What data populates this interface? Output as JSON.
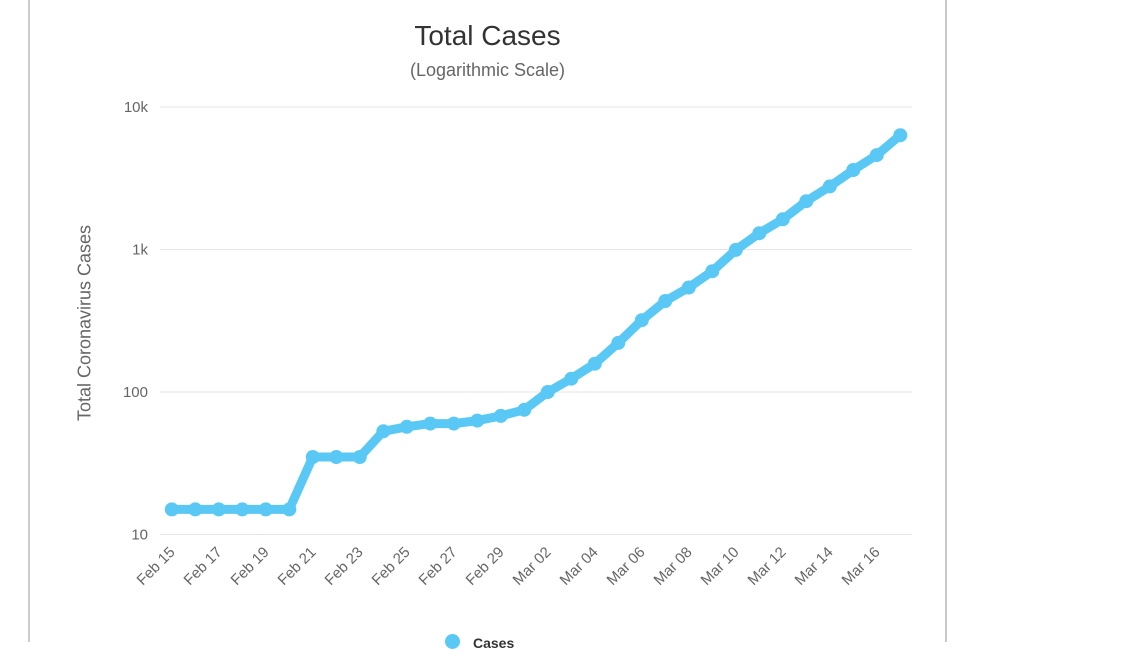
{
  "chart": {
    "title": "Total Cases",
    "subtitle": "(Logarithmic Scale)",
    "y_axis_title": "Total Coronavirus Cases",
    "line_color": "#5ac8f5",
    "grid_color": "#e6e6e6",
    "tick_label_color": "#666666",
    "title_color": "#333333",
    "card_border_color": "#cccccc",
    "legend": {
      "label": "Cases",
      "marker_color": "#5ac8f5"
    }
  },
  "chart_data": {
    "type": "line",
    "title": "Total Cases",
    "subtitle": "(Logarithmic Scale)",
    "xlabel": "",
    "ylabel": "Total Coronavirus Cases",
    "yscale": "log",
    "ylim": [
      10,
      10000
    ],
    "grid": true,
    "legend_position": "bottom",
    "x": [
      "Feb 15",
      "Feb 16",
      "Feb 17",
      "Feb 18",
      "Feb 19",
      "Feb 20",
      "Feb 21",
      "Feb 22",
      "Feb 23",
      "Feb 24",
      "Feb 25",
      "Feb 26",
      "Feb 27",
      "Feb 28",
      "Feb 29",
      "Mar 01",
      "Mar 02",
      "Mar 03",
      "Mar 04",
      "Mar 05",
      "Mar 06",
      "Mar 07",
      "Mar 08",
      "Mar 09",
      "Mar 10",
      "Mar 11",
      "Mar 12",
      "Mar 13",
      "Mar 14",
      "Mar 15",
      "Mar 16",
      "Mar 17"
    ],
    "xtick_labels": [
      "Feb 15",
      "Feb 17",
      "Feb 19",
      "Feb 21",
      "Feb 23",
      "Feb 25",
      "Feb 27",
      "Feb 29",
      "Mar 02",
      "Mar 04",
      "Mar 06",
      "Mar 08",
      "Mar 10",
      "Mar 12",
      "Mar 14",
      "Mar 16"
    ],
    "yticks": [
      10,
      100,
      1000,
      10000
    ],
    "ytick_labels": [
      "10",
      "100",
      "1k",
      "10k"
    ],
    "series": [
      {
        "name": "Cases",
        "values": [
          15,
          15,
          15,
          15,
          15,
          15,
          35,
          35,
          35,
          53,
          57,
          60,
          60,
          63,
          68,
          75,
          100,
          124,
          158,
          221,
          319,
          435,
          541,
          704,
          994,
          1301,
          1630,
          2183,
          2770,
          3613,
          4596,
          6344
        ]
      }
    ]
  }
}
